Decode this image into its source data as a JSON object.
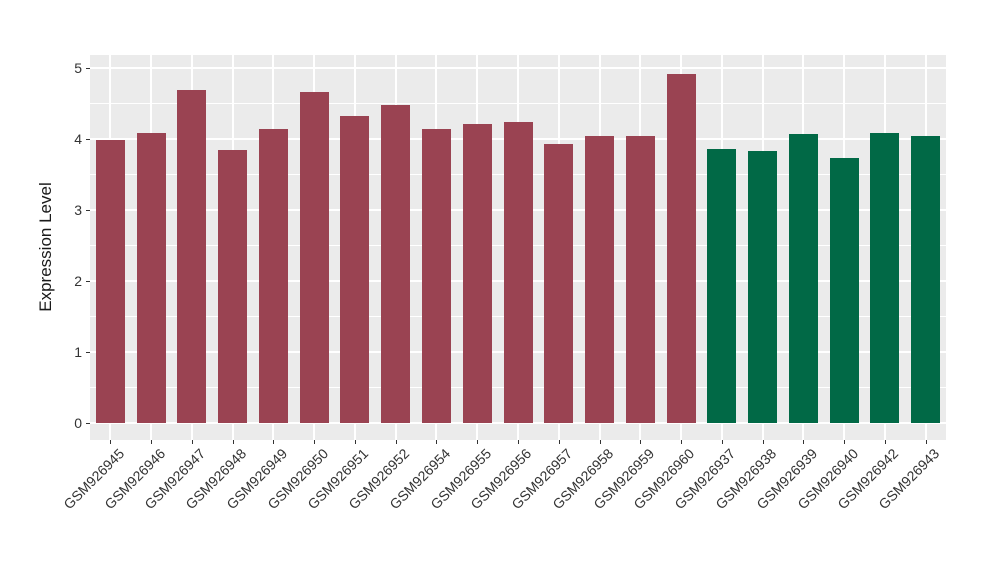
{
  "chart_data": {
    "type": "bar",
    "title": "",
    "xlabel": "",
    "ylabel": "Expression Level",
    "categories": [
      "GSM926945",
      "GSM926946",
      "GSM926947",
      "GSM926948",
      "GSM926949",
      "GSM926950",
      "GSM926951",
      "GSM926952",
      "GSM926954",
      "GSM926955",
      "GSM926956",
      "GSM926957",
      "GSM926958",
      "GSM926959",
      "GSM926960",
      "GSM926937",
      "GSM926938",
      "GSM926939",
      "GSM926940",
      "GSM926942",
      "GSM926943"
    ],
    "values": [
      3.98,
      4.08,
      4.69,
      3.84,
      4.13,
      4.66,
      4.32,
      4.47,
      4.13,
      4.21,
      4.24,
      3.93,
      4.04,
      4.04,
      4.91,
      3.86,
      3.83,
      4.06,
      3.73,
      4.08,
      4.04
    ],
    "groups": [
      "group1",
      "group1",
      "group1",
      "group1",
      "group1",
      "group1",
      "group1",
      "group1",
      "group1",
      "group1",
      "group1",
      "group1",
      "group1",
      "group1",
      "group1",
      "group2",
      "group2",
      "group2",
      "group2",
      "group2",
      "group2"
    ],
    "group_colors": {
      "group1": "#9A4352",
      "group2": "#016946"
    },
    "ylim": [
      0,
      5
    ],
    "yticks": [
      "0",
      "1",
      "2",
      "3",
      "4",
      "5"
    ],
    "ytick_values": [
      0,
      1,
      2,
      3,
      4,
      5
    ],
    "minor_ytick_values": [
      0.5,
      1.5,
      2.5,
      3.5,
      4.5
    ],
    "grid": "on",
    "legend": "none",
    "panel_background": "#EBEBEB",
    "grid_color": "#FFFFFF",
    "axis_text_color": "#333333",
    "axis_title_color": "#1a1a1a",
    "tick_color": "#333333"
  }
}
